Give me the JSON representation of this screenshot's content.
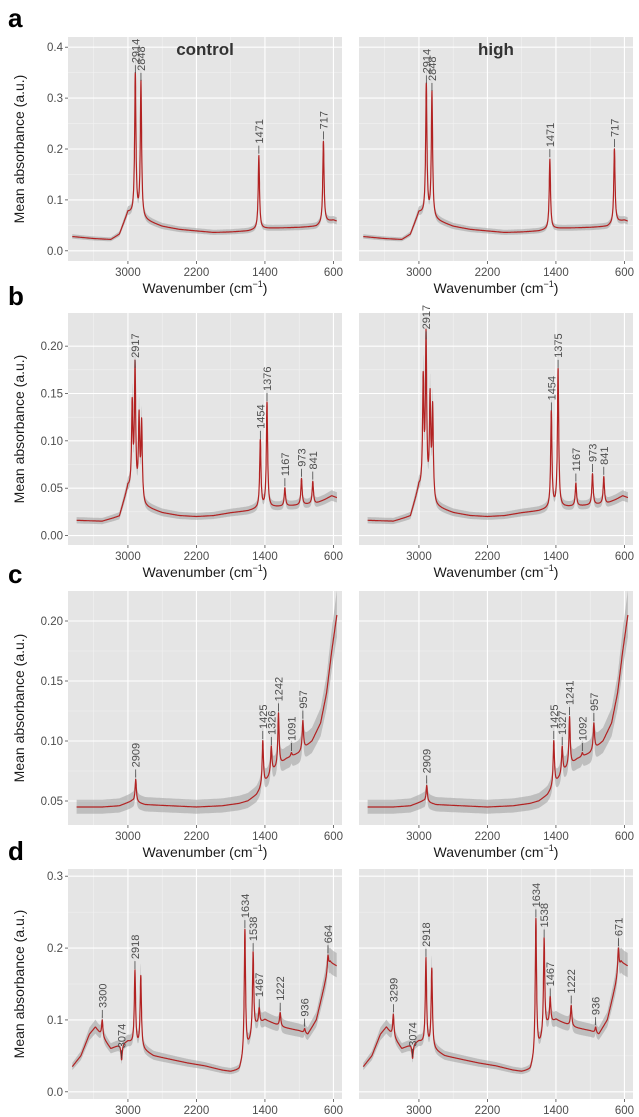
{
  "chart_data": [
    {
      "type": "line",
      "row_label": "a",
      "ylabel": "Mean absorbance (a.u.)",
      "xlabel": "Wavenumber (cm",
      "xlabel_sup": "−1",
      "x_reversed": true,
      "xlim": [
        3700,
        500
      ],
      "ylim": [
        -0.02,
        0.42
      ],
      "x_ticks": [
        3000,
        2200,
        1400,
        600
      ],
      "y_ticks": [
        0.0,
        0.1,
        0.2,
        0.3,
        0.4
      ],
      "y_tick_labels": [
        "0.0",
        "0.1",
        "0.2",
        "0.3",
        "0.4"
      ],
      "baseline": [
        [
          3650,
          0.028
        ],
        [
          3400,
          0.024
        ],
        [
          3200,
          0.022
        ],
        [
          3100,
          0.032
        ],
        [
          3000,
          0.075
        ],
        [
          2800,
          0.06
        ],
        [
          2600,
          0.048
        ],
        [
          2400,
          0.042
        ],
        [
          2200,
          0.039
        ],
        [
          2000,
          0.036
        ],
        [
          1800,
          0.037
        ],
        [
          1600,
          0.039
        ],
        [
          1500,
          0.042
        ],
        [
          1400,
          0.044
        ],
        [
          1200,
          0.045
        ],
        [
          1000,
          0.046
        ],
        [
          800,
          0.048
        ],
        [
          700,
          0.056
        ],
        [
          600,
          0.06
        ],
        [
          560,
          0.058
        ]
      ],
      "panels": [
        {
          "name": "control",
          "peaks": [
            {
              "x": 2914,
              "y": 0.345,
              "label": "2914"
            },
            {
              "x": 2848,
              "y": 0.33,
              "label": "2848"
            },
            {
              "x": 1471,
              "y": 0.187,
              "label": "1471"
            },
            {
              "x": 717,
              "y": 0.215,
              "label": "717"
            }
          ]
        },
        {
          "name": "high",
          "peaks": [
            {
              "x": 2914,
              "y": 0.325,
              "label": "2914"
            },
            {
              "x": 2848,
              "y": 0.31,
              "label": "2848"
            },
            {
              "x": 1471,
              "y": 0.18,
              "label": "1471"
            },
            {
              "x": 717,
              "y": 0.2,
              "label": "717"
            }
          ]
        }
      ]
    },
    {
      "type": "line",
      "row_label": "b",
      "ylabel": "Mean absorbance (a.u.)",
      "xlabel": "Wavenumber (cm",
      "xlabel_sup": "−1",
      "x_reversed": true,
      "xlim": [
        3700,
        500
      ],
      "ylim": [
        -0.01,
        0.235
      ],
      "x_ticks": [
        3000,
        2200,
        1400,
        600
      ],
      "y_ticks": [
        0.0,
        0.05,
        0.1,
        0.15,
        0.2
      ],
      "y_tick_labels": [
        "0.00",
        "0.05",
        "0.10",
        "0.15",
        "0.20"
      ],
      "baseline": [
        [
          3600,
          0.016
        ],
        [
          3300,
          0.015
        ],
        [
          3100,
          0.02
        ],
        [
          3000,
          0.05
        ],
        [
          2900,
          0.04
        ],
        [
          2800,
          0.03
        ],
        [
          2600,
          0.024
        ],
        [
          2400,
          0.021
        ],
        [
          2200,
          0.02
        ],
        [
          2000,
          0.021
        ],
        [
          1800,
          0.024
        ],
        [
          1600,
          0.026
        ],
        [
          1500,
          0.028
        ],
        [
          1300,
          0.03
        ],
        [
          1000,
          0.032
        ],
        [
          800,
          0.034
        ],
        [
          700,
          0.038
        ],
        [
          620,
          0.042
        ],
        [
          560,
          0.04
        ]
      ],
      "panels": [
        {
          "name": "control",
          "peaks": [
            {
              "x": 2950,
              "y": 0.135,
              "label": ""
            },
            {
              "x": 2917,
              "y": 0.175,
              "label": "2917"
            },
            {
              "x": 2870,
              "y": 0.12,
              "label": ""
            },
            {
              "x": 2840,
              "y": 0.115,
              "label": ""
            },
            {
              "x": 1454,
              "y": 0.1,
              "label": "1454"
            },
            {
              "x": 1376,
              "y": 0.14,
              "label": "1376"
            },
            {
              "x": 1167,
              "y": 0.05,
              "label": "1167"
            },
            {
              "x": 973,
              "y": 0.06,
              "label": "973"
            },
            {
              "x": 841,
              "y": 0.057,
              "label": "841"
            }
          ]
        },
        {
          "name": "high",
          "peaks": [
            {
              "x": 2950,
              "y": 0.16,
              "label": ""
            },
            {
              "x": 2917,
              "y": 0.205,
              "label": "2917"
            },
            {
              "x": 2870,
              "y": 0.14,
              "label": ""
            },
            {
              "x": 2840,
              "y": 0.13,
              "label": ""
            },
            {
              "x": 1454,
              "y": 0.13,
              "label": "1454"
            },
            {
              "x": 1375,
              "y": 0.175,
              "label": "1375"
            },
            {
              "x": 1167,
              "y": 0.055,
              "label": "1167"
            },
            {
              "x": 973,
              "y": 0.065,
              "label": "973"
            },
            {
              "x": 841,
              "y": 0.062,
              "label": "841"
            }
          ]
        }
      ]
    },
    {
      "type": "line",
      "row_label": "c",
      "ylabel": "Mean absorbance (a.u.)",
      "xlabel": "Wavenumber (cm",
      "xlabel_sup": "−1",
      "x_reversed": true,
      "xlim": [
        3700,
        500
      ],
      "ylim": [
        0.03,
        0.225
      ],
      "x_ticks": [
        3000,
        2200,
        1400,
        600
      ],
      "y_ticks": [
        0.05,
        0.1,
        0.15,
        0.2
      ],
      "y_tick_labels": [
        "0.05",
        "0.10",
        "0.15",
        "0.20"
      ],
      "baseline": [
        [
          3600,
          0.045
        ],
        [
          3300,
          0.045
        ],
        [
          3100,
          0.046
        ],
        [
          2950,
          0.05
        ],
        [
          2800,
          0.047
        ],
        [
          2500,
          0.046
        ],
        [
          2200,
          0.045
        ],
        [
          1900,
          0.046
        ],
        [
          1700,
          0.048
        ],
        [
          1600,
          0.05
        ],
        [
          1500,
          0.055
        ],
        [
          1400,
          0.065
        ],
        [
          1300,
          0.075
        ],
        [
          1150,
          0.085
        ],
        [
          1000,
          0.09
        ],
        [
          850,
          0.1
        ],
        [
          750,
          0.115
        ],
        [
          680,
          0.14
        ],
        [
          620,
          0.175
        ],
        [
          560,
          0.205
        ]
      ],
      "panels": [
        {
          "name": "control",
          "peaks": [
            {
              "x": 2909,
              "y": 0.068,
              "label": "2909"
            },
            {
              "x": 1425,
              "y": 0.1,
              "label": "1425"
            },
            {
              "x": 1326,
              "y": 0.095,
              "label": "1326"
            },
            {
              "x": 1242,
              "y": 0.123,
              "label": "1242"
            },
            {
              "x": 1091,
              "y": 0.09,
              "label": "1091"
            },
            {
              "x": 957,
              "y": 0.117,
              "label": "957"
            }
          ]
        },
        {
          "name": "high",
          "peaks": [
            {
              "x": 2909,
              "y": 0.063,
              "label": "2909"
            },
            {
              "x": 1425,
              "y": 0.1,
              "label": "1425"
            },
            {
              "x": 1327,
              "y": 0.095,
              "label": "1327"
            },
            {
              "x": 1241,
              "y": 0.12,
              "label": "1241"
            },
            {
              "x": 1092,
              "y": 0.09,
              "label": "1092"
            },
            {
              "x": 957,
              "y": 0.115,
              "label": "957"
            }
          ]
        }
      ]
    },
    {
      "type": "line",
      "row_label": "d",
      "ylabel": "Mean absorbance (a.u.)",
      "xlabel": "Wavenumber (cm",
      "xlabel_sup": "−1",
      "x_reversed": true,
      "xlim": [
        3700,
        500
      ],
      "ylim": [
        -0.01,
        0.31
      ],
      "x_ticks": [
        3000,
        2200,
        1400,
        600
      ],
      "y_ticks": [
        0.0,
        0.1,
        0.2,
        0.3
      ],
      "y_tick_labels": [
        "0.0",
        "0.1",
        "0.2",
        "0.3"
      ],
      "baseline": [
        [
          3650,
          0.035
        ],
        [
          3550,
          0.05
        ],
        [
          3450,
          0.08
        ],
        [
          3380,
          0.09
        ],
        [
          3200,
          0.06
        ],
        [
          3100,
          0.065
        ],
        [
          3000,
          0.07
        ],
        [
          2850,
          0.06
        ],
        [
          2700,
          0.05
        ],
        [
          2500,
          0.045
        ],
        [
          2300,
          0.04
        ],
        [
          2100,
          0.036
        ],
        [
          1900,
          0.03
        ],
        [
          1800,
          0.028
        ],
        [
          1700,
          0.03
        ],
        [
          1600,
          0.06
        ],
        [
          1500,
          0.09
        ],
        [
          1400,
          0.1
        ],
        [
          1300,
          0.095
        ],
        [
          1200,
          0.09
        ],
        [
          1000,
          0.085
        ],
        [
          900,
          0.08
        ],
        [
          800,
          0.1
        ],
        [
          700,
          0.15
        ],
        [
          640,
          0.18
        ],
        [
          560,
          0.175
        ]
      ],
      "panels": [
        {
          "name": "control",
          "peaks": [
            {
              "x": 3300,
              "y": 0.1,
              "label": "3300"
            },
            {
              "x": 3074,
              "y": 0.044,
              "label": "3074"
            },
            {
              "x": 2918,
              "y": 0.168,
              "label": "2918"
            },
            {
              "x": 2850,
              "y": 0.16,
              "label": ""
            },
            {
              "x": 1634,
              "y": 0.225,
              "label": "1634"
            },
            {
              "x": 1538,
              "y": 0.193,
              "label": "1538"
            },
            {
              "x": 1467,
              "y": 0.115,
              "label": "1467"
            },
            {
              "x": 1222,
              "y": 0.11,
              "label": "1222"
            },
            {
              "x": 936,
              "y": 0.088,
              "label": "936"
            },
            {
              "x": 664,
              "y": 0.19,
              "label": "664"
            }
          ]
        },
        {
          "name": "high",
          "peaks": [
            {
              "x": 3299,
              "y": 0.108,
              "label": "3299"
            },
            {
              "x": 3074,
              "y": 0.046,
              "label": "3074"
            },
            {
              "x": 2918,
              "y": 0.185,
              "label": "2918"
            },
            {
              "x": 2850,
              "y": 0.17,
              "label": ""
            },
            {
              "x": 1634,
              "y": 0.24,
              "label": "1634"
            },
            {
              "x": 1538,
              "y": 0.212,
              "label": "1538"
            },
            {
              "x": 1467,
              "y": 0.13,
              "label": "1467"
            },
            {
              "x": 1222,
              "y": 0.12,
              "label": "1222"
            },
            {
              "x": 936,
              "y": 0.09,
              "label": "936"
            },
            {
              "x": 671,
              "y": 0.2,
              "label": "671"
            }
          ]
        }
      ]
    }
  ]
}
